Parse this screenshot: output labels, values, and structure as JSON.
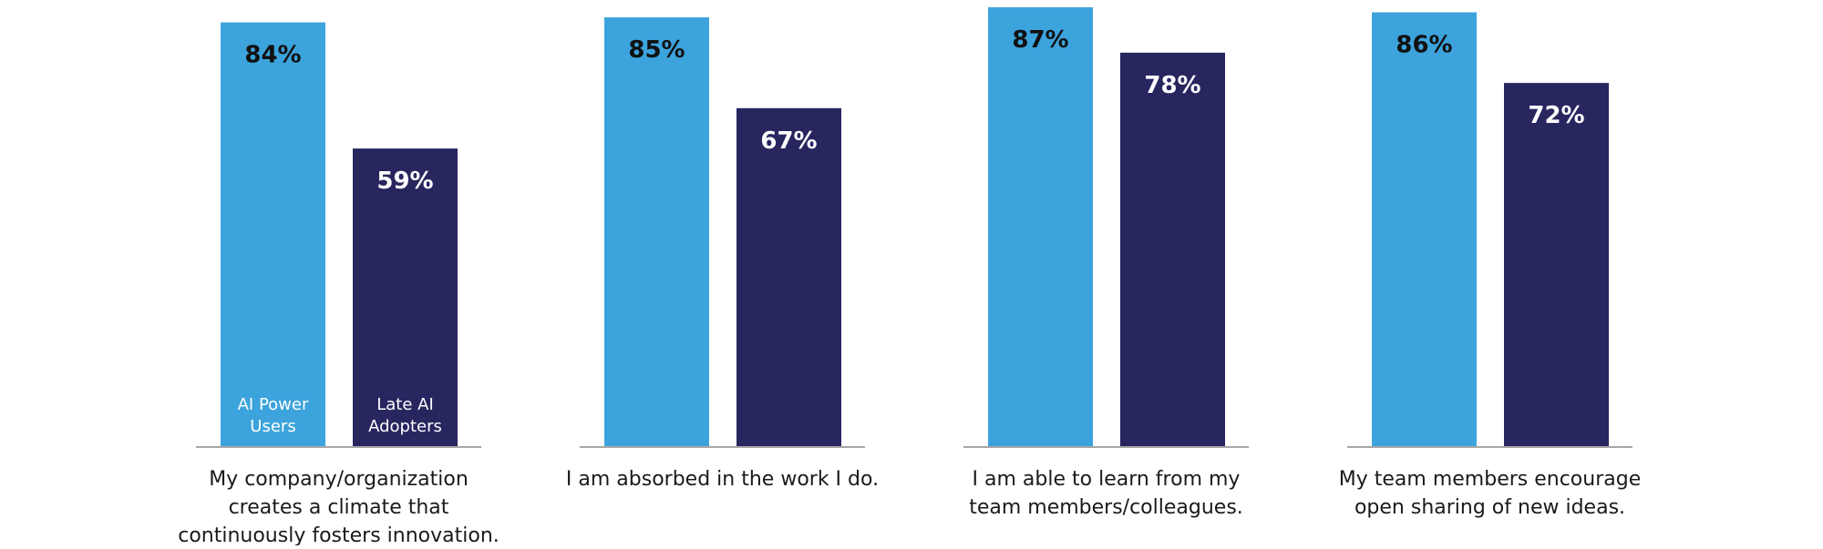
{
  "colors": {
    "ai_power_users": "#3ca3dc",
    "late_ai_adopters": "#28265f",
    "baseline": "#a6a6a6",
    "label_dark": "#111111",
    "label_light": "#ffffff"
  },
  "chart_data": {
    "type": "bar",
    "title": "",
    "xlabel": "",
    "ylabel": "",
    "ylim": [
      0,
      87
    ],
    "grid": false,
    "legend": "inside first group's bars",
    "series": [
      {
        "name": "AI Power Users",
        "name_lines": [
          "AI Power",
          "Users"
        ],
        "values": [
          84,
          85,
          87,
          86
        ]
      },
      {
        "name": "Late AI Adopters",
        "name_lines": [
          "Late AI",
          "Adopters"
        ],
        "values": [
          59,
          67,
          78,
          72
        ]
      }
    ],
    "categories": [
      [
        "My company/organization",
        "creates a climate that",
        "continuously fosters innovation."
      ],
      [
        "I am absorbed in the work I do."
      ],
      [
        "I am able to learn from my",
        "team members/colleagues."
      ],
      [
        "My team members encourage",
        "open sharing of new ideas."
      ]
    ],
    "value_labels": [
      [
        "84%",
        "59%"
      ],
      [
        "85%",
        "67%"
      ],
      [
        "87%",
        "78%"
      ],
      [
        "86%",
        "72%"
      ]
    ]
  }
}
